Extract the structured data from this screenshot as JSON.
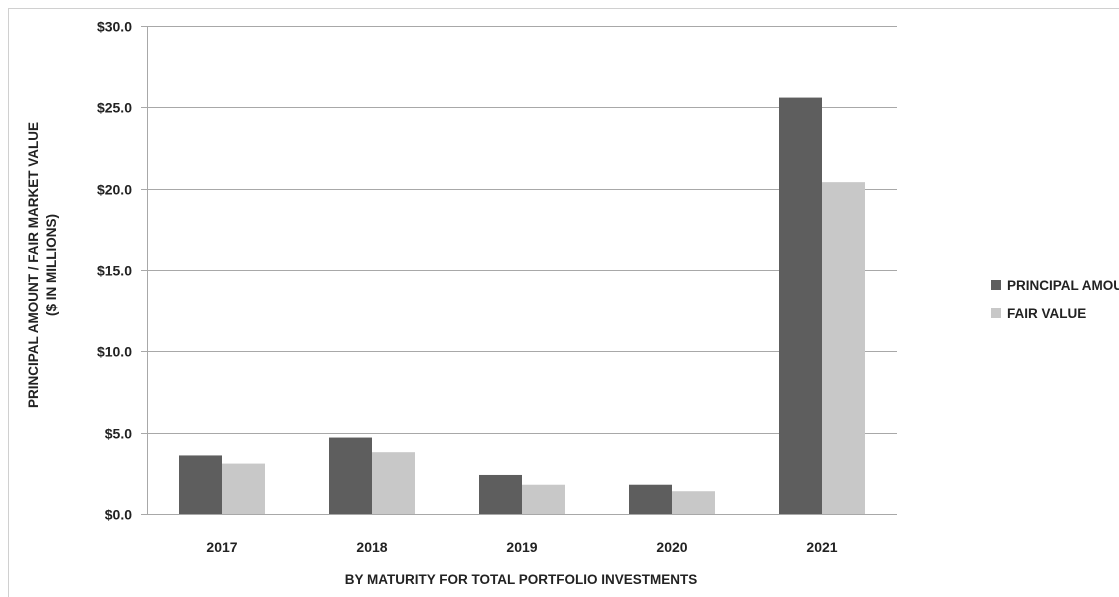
{
  "chart_data": {
    "type": "bar",
    "title": "",
    "categories": [
      "2017",
      "2018",
      "2019",
      "2020",
      "2021"
    ],
    "series": [
      {
        "name": "PRINCIPAL AMOUNT",
        "color": "#5e5e5e",
        "values": [
          3.6,
          4.7,
          2.4,
          1.8,
          25.6
        ]
      },
      {
        "name": "FAIR VALUE",
        "color": "#c8c8c8",
        "values": [
          3.1,
          3.8,
          1.8,
          1.4,
          20.4
        ]
      }
    ],
    "xlabel": "BY MATURITY FOR TOTAL PORTFOLIO INVESTMENTS",
    "ylabel_lines": [
      "PRINCIPAL AMOUNT / FAIR MARKET VALUE",
      "($ IN MILLIONS)"
    ],
    "y_ticks": [
      0,
      5,
      10,
      15,
      20,
      25,
      30
    ],
    "y_tick_labels": [
      "$0.0",
      "$5.0",
      "$10.0",
      "$15.0",
      "$20.0",
      "$25.0",
      "$30.0"
    ],
    "ylim": [
      0,
      30
    ],
    "grid": true,
    "gridline_color": "#a8a8a8",
    "legend_position": "right"
  }
}
